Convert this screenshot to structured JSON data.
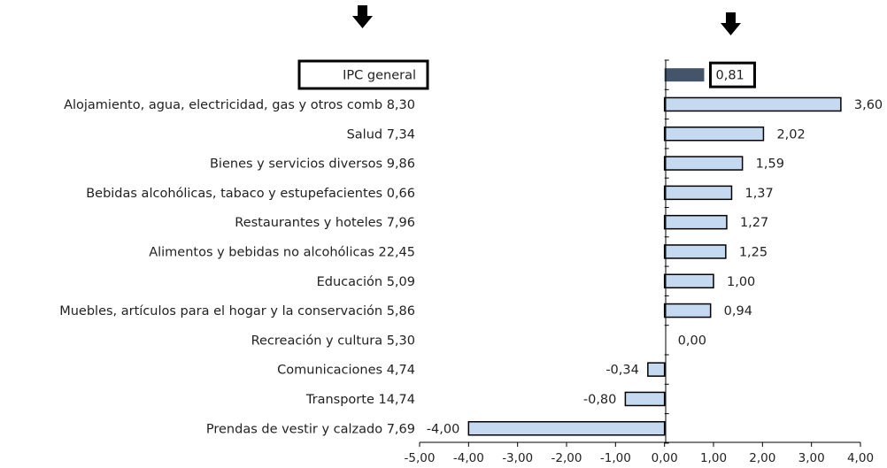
{
  "chart_data": {
    "type": "bar",
    "orientation": "horizontal",
    "title": "",
    "xlabel": "",
    "ylabel": "",
    "xlim": [
      -5,
      4
    ],
    "x_ticks": [
      -5,
      -4,
      -3,
      -2,
      -1,
      0,
      1,
      2,
      3,
      4
    ],
    "x_tick_labels": [
      "-5,00",
      "-4,00",
      "-3,00",
      "-2,00",
      "-1,00",
      "0,00",
      "1,00",
      "2,00",
      "3,00",
      "4,00"
    ],
    "grid": false,
    "legend": "none",
    "categories": [
      "IPC general",
      "Alojamiento, agua, electricidad, gas y otros comb",
      "Salud",
      "Bienes y servicios diversos",
      "Bebidas alcohólicas, tabaco y estupefacientes",
      "Restaurantes y hoteles",
      "Alimentos y bebidas no alcohólicas",
      "Educación",
      "Muebles, artículos para el hogar y la conservación",
      "Recreación y cultura",
      "Comunicaciones",
      "Transporte",
      "Prendas de vestir y calzado"
    ],
    "weights": [
      "",
      "8,30",
      "7,34",
      "9,86",
      "0,66",
      "7,96",
      "22,45",
      "5,09",
      "5,86",
      "5,30",
      "4,74",
      "14,74",
      "7,69"
    ],
    "values": [
      0.81,
      3.6,
      2.02,
      1.59,
      1.37,
      1.27,
      1.25,
      1.0,
      0.94,
      0.0,
      -0.34,
      -0.8,
      -4.0
    ],
    "value_labels": [
      "0,81",
      "3,60",
      "2,02",
      "1,59",
      "1,37",
      "1,27",
      "1,25",
      "1,00",
      "0,94",
      "0,00",
      "-0,34",
      "-0,80",
      "-4,00"
    ],
    "highlighted": [
      0
    ],
    "colors": {
      "bar": "#c5d9f1",
      "bar_highlight": "#44546a",
      "bar_stroke": "#000000",
      "arrow": "#000000"
    },
    "icons": [
      "arrow-down-icon",
      "arrow-down-icon"
    ]
  }
}
